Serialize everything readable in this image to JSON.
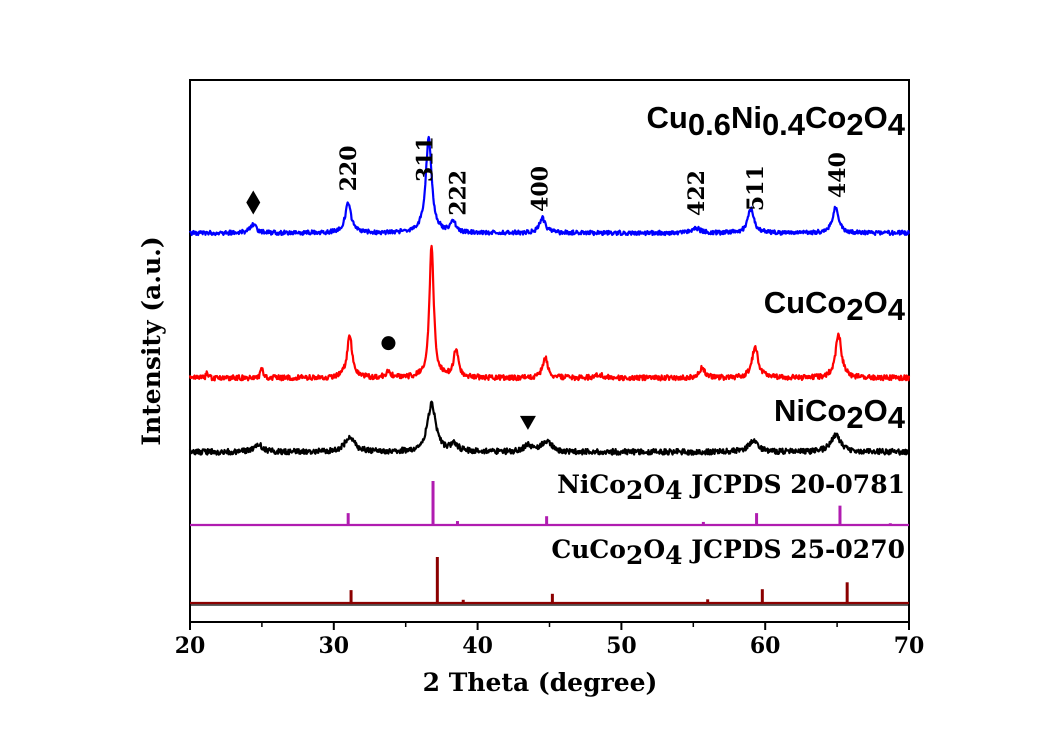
{
  "chart_data": {
    "type": "line",
    "xlabel": "2 Theta (degree)",
    "ylabel": "Intensity (a.u.)",
    "xlim": [
      20,
      70
    ],
    "x_ticks": [
      "20",
      "30",
      "40",
      "50",
      "60",
      "70"
    ],
    "grid": false,
    "series": [
      {
        "key": "cuni",
        "name_parts": [
          [
            "Cu",
            false
          ],
          [
            "0.6",
            true
          ],
          [
            "Ni",
            false
          ],
          [
            "0.4",
            true
          ],
          [
            "Co",
            false
          ],
          [
            "2",
            true
          ],
          [
            "O",
            false
          ],
          [
            "4",
            true
          ]
        ],
        "color": "#0000ff",
        "peaks": [
          {
            "x": 24.4,
            "h": 0.12,
            "w": 0.25
          },
          {
            "x": 31.0,
            "h": 0.42,
            "w": 0.25
          },
          {
            "x": 36.6,
            "h": 1.35,
            "w": 0.25
          },
          {
            "x": 38.3,
            "h": 0.15,
            "w": 0.22
          },
          {
            "x": 44.5,
            "h": 0.21,
            "w": 0.25
          },
          {
            "x": 55.2,
            "h": 0.07,
            "w": 0.3
          },
          {
            "x": 59.0,
            "h": 0.34,
            "w": 0.25
          },
          {
            "x": 64.9,
            "h": 0.38,
            "w": 0.25
          }
        ],
        "hkl": [
          {
            "x": 31.0,
            "label": "220"
          },
          {
            "x": 36.3,
            "label": "311"
          },
          {
            "x": 38.6,
            "label": "222"
          },
          {
            "x": 44.3,
            "label": "400"
          },
          {
            "x": 55.2,
            "label": "422"
          },
          {
            "x": 59.3,
            "label": "511"
          },
          {
            "x": 65.0,
            "label": "440"
          }
        ],
        "markers": [
          {
            "x": 24.4,
            "symbol": "diamond"
          }
        ]
      },
      {
        "key": "cu",
        "name_parts": [
          [
            "CuCo",
            false
          ],
          [
            "2",
            true
          ],
          [
            "O",
            false
          ],
          [
            "4",
            true
          ]
        ],
        "color": "#ff0000",
        "peaks": [
          {
            "x": 21.2,
            "h": 0.08,
            "w": 0.08
          },
          {
            "x": 25.0,
            "h": 0.12,
            "w": 0.12
          },
          {
            "x": 31.1,
            "h": 0.6,
            "w": 0.22
          },
          {
            "x": 33.8,
            "h": 0.1,
            "w": 0.2
          },
          {
            "x": 36.8,
            "h": 1.9,
            "w": 0.18
          },
          {
            "x": 38.5,
            "h": 0.4,
            "w": 0.2
          },
          {
            "x": 44.7,
            "h": 0.3,
            "w": 0.22
          },
          {
            "x": 48.5,
            "h": 0.05,
            "w": 0.3
          },
          {
            "x": 55.6,
            "h": 0.14,
            "w": 0.25
          },
          {
            "x": 59.3,
            "h": 0.45,
            "w": 0.25
          },
          {
            "x": 65.1,
            "h": 0.62,
            "w": 0.25
          }
        ],
        "markers": [
          {
            "x": 33.8,
            "symbol": "circle"
          }
        ]
      },
      {
        "key": "ni",
        "name_parts": [
          [
            "NiCo",
            false
          ],
          [
            "2",
            true
          ],
          [
            "O",
            false
          ],
          [
            "4",
            true
          ]
        ],
        "color": "#000000",
        "peaks": [
          {
            "x": 24.8,
            "h": 0.1,
            "w": 0.35
          },
          {
            "x": 31.1,
            "h": 0.22,
            "w": 0.4
          },
          {
            "x": 36.8,
            "h": 0.68,
            "w": 0.35
          },
          {
            "x": 38.4,
            "h": 0.1,
            "w": 0.3
          },
          {
            "x": 43.5,
            "h": 0.1,
            "w": 0.3
          },
          {
            "x": 44.8,
            "h": 0.16,
            "w": 0.4
          },
          {
            "x": 59.2,
            "h": 0.16,
            "w": 0.4
          },
          {
            "x": 64.9,
            "h": 0.25,
            "w": 0.4
          }
        ],
        "markers": [
          {
            "x": 43.5,
            "symbol": "triangle-down"
          }
        ]
      }
    ],
    "references": [
      {
        "key": "ref_ni",
        "label_parts": [
          [
            "NiCo",
            false
          ],
          [
            "2",
            true
          ],
          [
            "O",
            false
          ],
          [
            "4",
            true
          ],
          [
            " JCPDS 20-0781",
            false
          ]
        ],
        "color": "#b01cb0",
        "sticks": [
          {
            "x": 31.0,
            "h": 0.27
          },
          {
            "x": 36.9,
            "h": 1.0
          },
          {
            "x": 38.6,
            "h": 0.09
          },
          {
            "x": 44.8,
            "h": 0.2
          },
          {
            "x": 55.7,
            "h": 0.07
          },
          {
            "x": 59.4,
            "h": 0.27
          },
          {
            "x": 65.2,
            "h": 0.44
          },
          {
            "x": 68.7,
            "h": 0.04
          }
        ]
      },
      {
        "key": "ref_cu",
        "label_parts": [
          [
            "CuCo",
            false
          ],
          [
            "2",
            true
          ],
          [
            "O",
            false
          ],
          [
            "4",
            true
          ],
          [
            " JCPDS 25-0270",
            false
          ]
        ],
        "color": "#8b0000",
        "sticks": [
          {
            "x": 31.2,
            "h": 0.28
          },
          {
            "x": 37.2,
            "h": 1.0
          },
          {
            "x": 39.0,
            "h": 0.07
          },
          {
            "x": 45.2,
            "h": 0.2
          },
          {
            "x": 56.0,
            "h": 0.08
          },
          {
            "x": 59.8,
            "h": 0.3
          },
          {
            "x": 65.7,
            "h": 0.45
          }
        ]
      }
    ]
  }
}
